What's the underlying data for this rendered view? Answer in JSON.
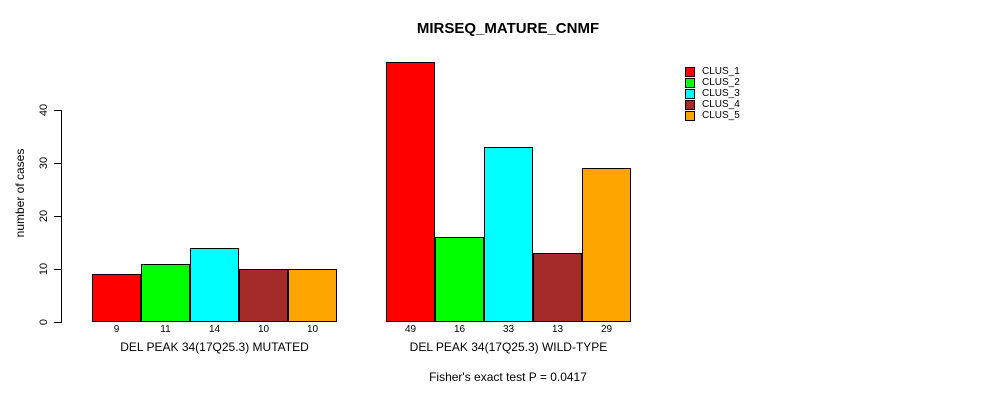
{
  "title": "MIRSEQ_MATURE_CNMF",
  "footer": "Fisher's exact test P = 0.0417",
  "y_axis": {
    "label": "number of cases",
    "ticks": [
      0,
      10,
      20,
      30,
      40
    ]
  },
  "legend": {
    "position": "top-right",
    "entries": [
      {
        "label": "CLUS_1",
        "color": "#ff0000"
      },
      {
        "label": "CLUS_2",
        "color": "#00ff00"
      },
      {
        "label": "CLUS_3",
        "color": "#00ffff"
      },
      {
        "label": "CLUS_4",
        "color": "#a52a2a"
      },
      {
        "label": "CLUS_5",
        "color": "#ffa500"
      }
    ]
  },
  "chart_data": {
    "type": "bar",
    "title": "MIRSEQ_MATURE_CNMF",
    "ylabel": "number of cases",
    "yticks": [
      0,
      10,
      20,
      30,
      40
    ],
    "ylim": [
      0,
      50
    ],
    "grid": false,
    "legend_position": "top-right",
    "series": [
      "CLUS_1",
      "CLUS_2",
      "CLUS_3",
      "CLUS_4",
      "CLUS_5"
    ],
    "series_colors": [
      "#ff0000",
      "#00ff00",
      "#00ffff",
      "#a52a2a",
      "#ffa500"
    ],
    "groups": [
      {
        "category": "DEL PEAK 34(17Q25.3) MUTATED",
        "values": [
          9,
          11,
          14,
          10,
          10
        ]
      },
      {
        "category": "DEL PEAK 34(17Q25.3) WILD-TYPE",
        "values": [
          49,
          16,
          33,
          13,
          29
        ]
      }
    ],
    "bar_value_labels_shown": true,
    "annotation": "Fisher's exact test P = 0.0417"
  }
}
